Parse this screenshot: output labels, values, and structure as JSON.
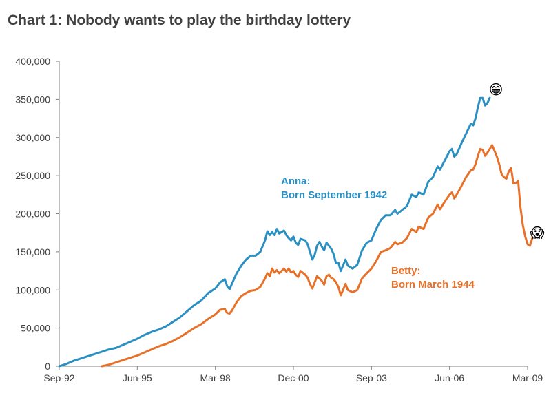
{
  "chart_data": {
    "type": "line",
    "title": "Chart 1: Nobody wants to play the birthday lottery",
    "xlabel": "",
    "ylabel": "",
    "ylim": [
      0,
      400000
    ],
    "xlim_months": [
      0,
      198
    ],
    "y_ticks": [
      {
        "label": "0",
        "value": 0
      },
      {
        "label": "50,000",
        "value": 50000
      },
      {
        "label": "100,000",
        "value": 100000
      },
      {
        "label": "150,000",
        "value": 150000
      },
      {
        "label": "200,000",
        "value": 200000
      },
      {
        "label": "250,000",
        "value": 250000
      },
      {
        "label": "300,000",
        "value": 300000
      },
      {
        "label": "350,000",
        "value": 350000
      },
      {
        "label": "400,000",
        "value": 400000
      }
    ],
    "x_ticks": [
      {
        "label": "Sep-92",
        "month": 0
      },
      {
        "label": "Jun-95",
        "month": 33
      },
      {
        "label": "Mar-98",
        "month": 66
      },
      {
        "label": "Dec-00",
        "month": 99
      },
      {
        "label": "Sep-03",
        "month": 132
      },
      {
        "label": "Jun-06",
        "month": 165
      },
      {
        "label": "Mar-09",
        "month": 198
      }
    ],
    "series": [
      {
        "name": "Anna",
        "label_line1": "Anna:",
        "label_line2": "Born September 1942",
        "color": "#2a8fc1",
        "emoji": "😁",
        "points": [
          [
            0,
            0
          ],
          [
            3,
            3000
          ],
          [
            6,
            7000
          ],
          [
            9,
            10000
          ],
          [
            12,
            13000
          ],
          [
            15,
            16000
          ],
          [
            18,
            19000
          ],
          [
            21,
            22000
          ],
          [
            24,
            24000
          ],
          [
            27,
            28000
          ],
          [
            30,
            32000
          ],
          [
            33,
            36000
          ],
          [
            36,
            41000
          ],
          [
            39,
            45000
          ],
          [
            42,
            48000
          ],
          [
            45,
            52000
          ],
          [
            48,
            58000
          ],
          [
            51,
            64000
          ],
          [
            54,
            72000
          ],
          [
            57,
            80000
          ],
          [
            60,
            86000
          ],
          [
            63,
            96000
          ],
          [
            66,
            102000
          ],
          [
            68,
            110000
          ],
          [
            70,
            114000
          ],
          [
            71,
            105000
          ],
          [
            72,
            101000
          ],
          [
            73,
            108000
          ],
          [
            75,
            122000
          ],
          [
            77,
            132000
          ],
          [
            79,
            140000
          ],
          [
            81,
            145000
          ],
          [
            83,
            145000
          ],
          [
            85,
            150000
          ],
          [
            87,
            165000
          ],
          [
            88,
            177000
          ],
          [
            89,
            172000
          ],
          [
            90,
            176000
          ],
          [
            91,
            172000
          ],
          [
            92,
            180000
          ],
          [
            93,
            174000
          ],
          [
            95,
            178000
          ],
          [
            96,
            172000
          ],
          [
            97,
            168000
          ],
          [
            98,
            165000
          ],
          [
            99,
            170000
          ],
          [
            100,
            162000
          ],
          [
            101,
            159000
          ],
          [
            102,
            167000
          ],
          [
            104,
            165000
          ],
          [
            105,
            160000
          ],
          [
            106,
            150000
          ],
          [
            107,
            140000
          ],
          [
            108,
            146000
          ],
          [
            109,
            158000
          ],
          [
            110,
            163000
          ],
          [
            111,
            157000
          ],
          [
            112,
            152000
          ],
          [
            113,
            162000
          ],
          [
            114,
            158000
          ],
          [
            115,
            154000
          ],
          [
            116,
            147000
          ],
          [
            117,
            135000
          ],
          [
            118,
            136000
          ],
          [
            119,
            125000
          ],
          [
            120,
            132000
          ],
          [
            121,
            140000
          ],
          [
            122,
            132000
          ],
          [
            124,
            128000
          ],
          [
            126,
            133000
          ],
          [
            128,
            152000
          ],
          [
            130,
            162000
          ],
          [
            132,
            165000
          ],
          [
            134,
            180000
          ],
          [
            136,
            192000
          ],
          [
            138,
            198000
          ],
          [
            140,
            198000
          ],
          [
            142,
            205000
          ],
          [
            143,
            200000
          ],
          [
            145,
            205000
          ],
          [
            147,
            210000
          ],
          [
            149,
            225000
          ],
          [
            151,
            222000
          ],
          [
            152,
            228000
          ],
          [
            154,
            225000
          ],
          [
            156,
            242000
          ],
          [
            158,
            248000
          ],
          [
            160,
            262000
          ],
          [
            161,
            258000
          ],
          [
            163,
            270000
          ],
          [
            165,
            282000
          ],
          [
            166,
            285000
          ],
          [
            167,
            275000
          ],
          [
            168,
            278000
          ],
          [
            170,
            292000
          ],
          [
            172,
            305000
          ],
          [
            174,
            318000
          ],
          [
            175,
            316000
          ],
          [
            176,
            325000
          ],
          [
            177,
            340000
          ],
          [
            178,
            352000
          ],
          [
            179,
            352000
          ],
          [
            180,
            342000
          ],
          [
            181,
            345000
          ],
          [
            182,
            352000
          ]
        ]
      },
      {
        "name": "Betty",
        "label_line1": "Betty:",
        "label_line2": "Born March 1944",
        "color": "#e8712a",
        "emoji": "😱",
        "points": [
          [
            18,
            0
          ],
          [
            21,
            2000
          ],
          [
            24,
            5000
          ],
          [
            27,
            8000
          ],
          [
            30,
            11000
          ],
          [
            33,
            14000
          ],
          [
            36,
            18000
          ],
          [
            39,
            22000
          ],
          [
            42,
            26000
          ],
          [
            45,
            29000
          ],
          [
            48,
            33000
          ],
          [
            51,
            38000
          ],
          [
            54,
            44000
          ],
          [
            57,
            50000
          ],
          [
            60,
            55000
          ],
          [
            63,
            62000
          ],
          [
            66,
            68000
          ],
          [
            68,
            74000
          ],
          [
            70,
            75000
          ],
          [
            71,
            70000
          ],
          [
            72,
            69000
          ],
          [
            73,
            73000
          ],
          [
            75,
            84000
          ],
          [
            77,
            92000
          ],
          [
            79,
            96000
          ],
          [
            81,
            99000
          ],
          [
            83,
            100000
          ],
          [
            85,
            104000
          ],
          [
            87,
            115000
          ],
          [
            88,
            122000
          ],
          [
            89,
            118000
          ],
          [
            90,
            128000
          ],
          [
            91,
            123000
          ],
          [
            92,
            126000
          ],
          [
            93,
            122000
          ],
          [
            95,
            128000
          ],
          [
            96,
            124000
          ],
          [
            97,
            128000
          ],
          [
            98,
            123000
          ],
          [
            99,
            125000
          ],
          [
            100,
            120000
          ],
          [
            101,
            117000
          ],
          [
            102,
            125000
          ],
          [
            104,
            120000
          ],
          [
            105,
            116000
          ],
          [
            106,
            108000
          ],
          [
            107,
            102000
          ],
          [
            108,
            110000
          ],
          [
            109,
            118000
          ],
          [
            110,
            115000
          ],
          [
            111,
            112000
          ],
          [
            112,
            107000
          ],
          [
            113,
            118000
          ],
          [
            114,
            120000
          ],
          [
            115,
            116000
          ],
          [
            116,
            114000
          ],
          [
            117,
            110000
          ],
          [
            118,
            104000
          ],
          [
            119,
            93000
          ],
          [
            120,
            100000
          ],
          [
            121,
            108000
          ],
          [
            122,
            100000
          ],
          [
            124,
            97000
          ],
          [
            126,
            100000
          ],
          [
            128,
            115000
          ],
          [
            130,
            122000
          ],
          [
            132,
            128000
          ],
          [
            134,
            138000
          ],
          [
            136,
            150000
          ],
          [
            138,
            152000
          ],
          [
            140,
            155000
          ],
          [
            142,
            163000
          ],
          [
            143,
            160000
          ],
          [
            145,
            162000
          ],
          [
            147,
            168000
          ],
          [
            149,
            180000
          ],
          [
            151,
            176000
          ],
          [
            152,
            183000
          ],
          [
            154,
            180000
          ],
          [
            156,
            195000
          ],
          [
            158,
            200000
          ],
          [
            160,
            212000
          ],
          [
            161,
            206000
          ],
          [
            163,
            216000
          ],
          [
            165,
            225000
          ],
          [
            166,
            228000
          ],
          [
            167,
            220000
          ],
          [
            168,
            225000
          ],
          [
            170,
            236000
          ],
          [
            172,
            248000
          ],
          [
            174,
            257000
          ],
          [
            175,
            258000
          ],
          [
            176,
            265000
          ],
          [
            177,
            276000
          ],
          [
            178,
            285000
          ],
          [
            179,
            284000
          ],
          [
            180,
            276000
          ],
          [
            181,
            280000
          ],
          [
            183,
            290000
          ],
          [
            185,
            275000
          ],
          [
            186,
            265000
          ],
          [
            187,
            252000
          ],
          [
            188,
            248000
          ],
          [
            189,
            246000
          ],
          [
            190,
            255000
          ],
          [
            191,
            260000
          ],
          [
            192,
            240000
          ],
          [
            193,
            240000
          ],
          [
            194,
            243000
          ],
          [
            195,
            208000
          ],
          [
            196,
            185000
          ],
          [
            197,
            170000
          ],
          [
            198,
            160000
          ],
          [
            199,
            158000
          ],
          [
            200,
            168000
          ]
        ]
      }
    ]
  }
}
